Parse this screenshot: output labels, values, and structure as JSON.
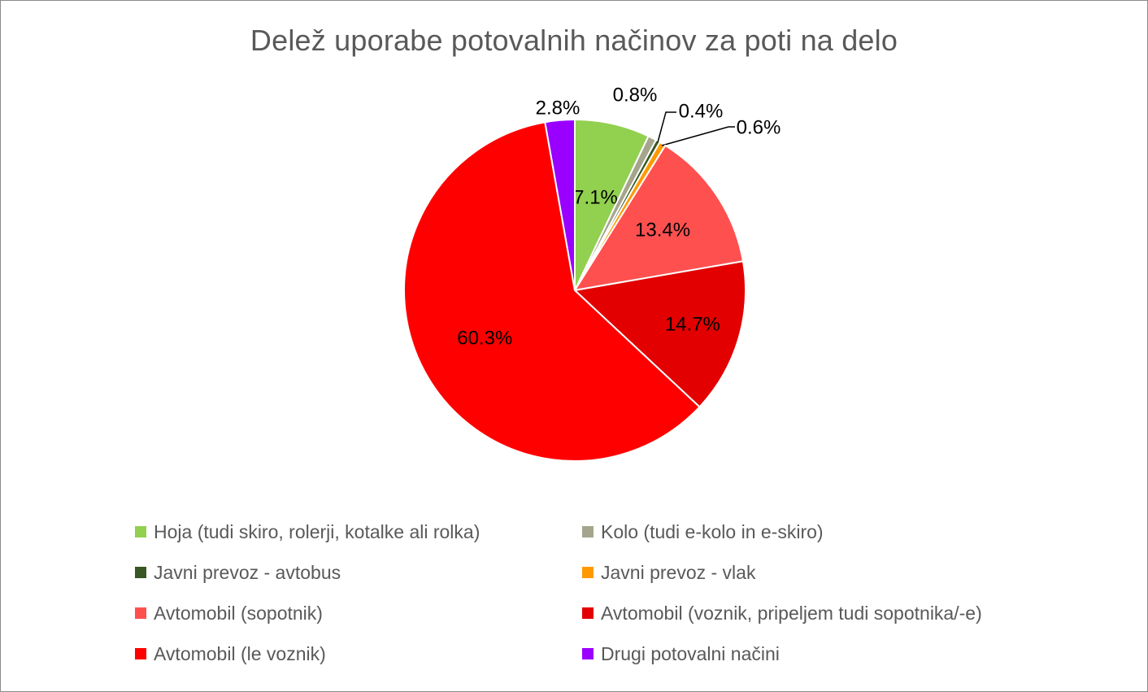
{
  "chart_data": {
    "type": "pie",
    "title": "Delež uporabe potovalnih načinov za poti na delo",
    "legend_position": "bottom",
    "slices": [
      {
        "name": "Hoja (tudi skiro, rolerji, kotalke ali rolka)",
        "value": 7.1,
        "label": "7.1%",
        "color": "#92d050"
      },
      {
        "name": "Kolo (tudi e-kolo in e-skiro)",
        "value": 0.8,
        "label": "0.8%",
        "color": "#a5a58d"
      },
      {
        "name": "Javni prevoz - avtobus",
        "value": 0.4,
        "label": "0.4%",
        "color": "#385723"
      },
      {
        "name": "Javni prevoz - vlak",
        "value": 0.6,
        "label": "0.6%",
        "color": "#ff9900"
      },
      {
        "name": "Avtomobil (sopotnik)",
        "value": 13.4,
        "label": "13.4%",
        "color": "#ff5050"
      },
      {
        "name": "Avtomobil (voznik, pripeljem tudi sopotnika/-e)",
        "value": 14.7,
        "label": "14.7%",
        "color": "#e20000"
      },
      {
        "name": "Avtomobil (le voznik)",
        "value": 60.3,
        "label": "60.3%",
        "color": "#ff0000"
      },
      {
        "name": "Drugi potovalni načini",
        "value": 2.8,
        "label": "2.8%",
        "color": "#9900ff"
      }
    ]
  }
}
